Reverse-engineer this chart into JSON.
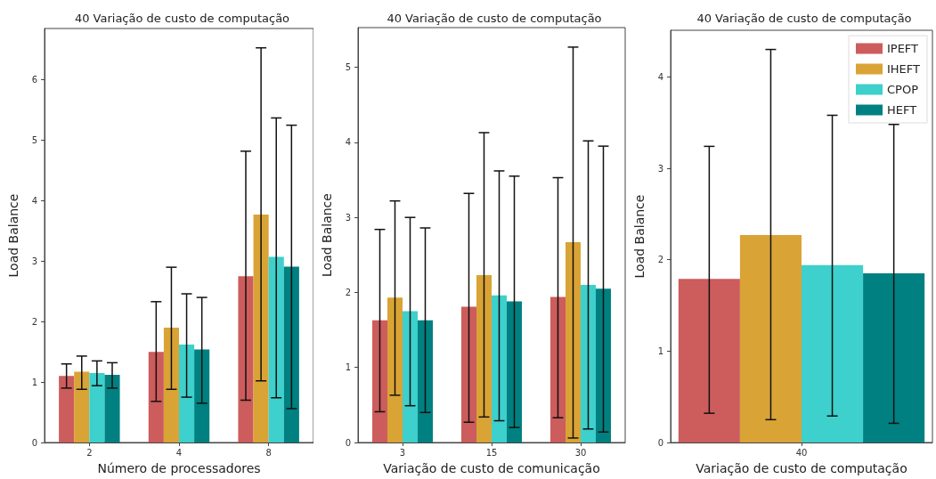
{
  "chart_data": [
    {
      "type": "bar",
      "title": "40 Variação de custo de computação",
      "xlabel": "Número de processadores",
      "ylabel": "Load Balance",
      "categories": [
        "2",
        "4",
        "8"
      ],
      "ylim": [
        0,
        6.85
      ],
      "yticks": [
        0,
        1,
        2,
        3,
        4,
        5,
        6
      ],
      "grid": false,
      "legend": false,
      "series": [
        {
          "color": "#cd5c5c",
          "values": [
            1.1,
            1.5,
            2.75
          ],
          "errors": [
            [
              0.9,
              1.3
            ],
            [
              0.68,
              2.33
            ],
            [
              0.7,
              4.82
            ]
          ]
        },
        {
          "color": "#daa335",
          "values": [
            1.17,
            1.9,
            3.77
          ],
          "errors": [
            [
              0.88,
              1.43
            ],
            [
              0.88,
              2.9
            ],
            [
              1.02,
              6.53
            ]
          ]
        },
        {
          "color": "#3dd0cc",
          "values": [
            1.15,
            1.62,
            3.07
          ],
          "errors": [
            [
              0.94,
              1.35
            ],
            [
              0.75,
              2.46
            ],
            [
              0.74,
              5.37
            ]
          ]
        },
        {
          "color": "#008080",
          "values": [
            1.12,
            1.54,
            2.91
          ],
          "errors": [
            [
              0.9,
              1.32
            ],
            [
              0.65,
              2.4
            ],
            [
              0.56,
              5.25
            ]
          ]
        }
      ]
    },
    {
      "type": "bar",
      "title": "40 Variação de custo de computação",
      "xlabel": "Variação de custo de comunicação",
      "ylabel": "Load Balance",
      "categories": [
        "3",
        "15",
        "30"
      ],
      "ylim": [
        0,
        5.53
      ],
      "yticks": [
        0,
        1,
        2,
        3,
        4,
        5
      ],
      "grid": false,
      "legend": false,
      "series": [
        {
          "color": "#cd5c5c",
          "values": [
            1.63,
            1.81,
            1.94
          ],
          "errors": [
            [
              0.41,
              2.84
            ],
            [
              0.27,
              3.32
            ],
            [
              0.33,
              3.53
            ]
          ]
        },
        {
          "color": "#daa335",
          "values": [
            1.93,
            2.23,
            2.67
          ],
          "errors": [
            [
              0.63,
              3.22
            ],
            [
              0.34,
              4.13
            ],
            [
              0.06,
              5.27
            ]
          ]
        },
        {
          "color": "#3dd0cc",
          "values": [
            1.75,
            1.96,
            2.1
          ],
          "errors": [
            [
              0.49,
              3.0
            ],
            [
              0.29,
              3.62
            ],
            [
              0.18,
              4.02
            ]
          ]
        },
        {
          "color": "#008080",
          "values": [
            1.63,
            1.88,
            2.05
          ],
          "errors": [
            [
              0.4,
              2.86
            ],
            [
              0.2,
              3.55
            ],
            [
              0.14,
              3.95
            ]
          ]
        }
      ]
    },
    {
      "type": "bar",
      "title": "40 Variação de custo de computação",
      "xlabel": "Variação de custo de computação",
      "ylabel": "Load Balance",
      "categories": [
        "40"
      ],
      "ylim": [
        0,
        4.51
      ],
      "yticks": [
        0,
        1,
        2,
        3,
        4
      ],
      "grid": false,
      "legend": "top right",
      "series": [
        {
          "name": "IPEFT",
          "color": "#cd5c5c",
          "values": [
            1.79
          ],
          "errors": [
            [
              0.32,
              3.24
            ]
          ]
        },
        {
          "name": "IHEFT",
          "color": "#daa335",
          "values": [
            2.27
          ],
          "errors": [
            [
              0.25,
              4.3
            ]
          ]
        },
        {
          "name": "CPOP",
          "color": "#3dd0cc",
          "values": [
            1.94
          ],
          "errors": [
            [
              0.29,
              3.58
            ]
          ]
        },
        {
          "name": "HEFT",
          "color": "#008080",
          "values": [
            1.85
          ],
          "errors": [
            [
              0.21,
              3.48
            ]
          ]
        }
      ]
    }
  ]
}
